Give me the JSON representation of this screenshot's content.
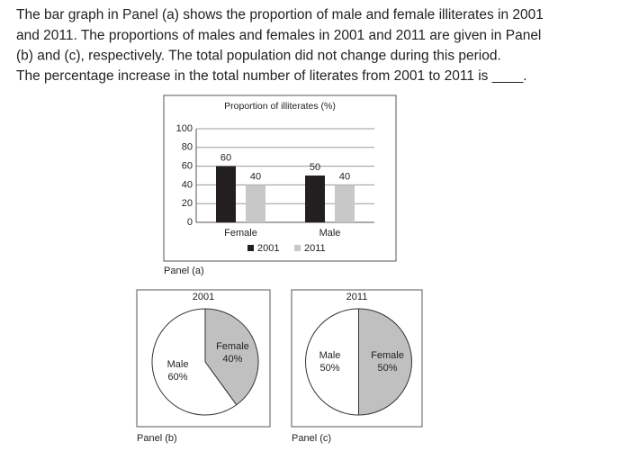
{
  "question": [
    "The bar graph in Panel (a) shows the proportion of male and female illiterates in 2001",
    "and 2011. The proportions of males and females in 2001 and 2011 are given in Panel",
    "(b) and (c), respectively. The total population did not change during this period.",
    "The percentage increase in the total number of literates from 2001 to 2011 is ____."
  ],
  "chart_data": [
    {
      "type": "bar",
      "title": "Proportion of illiterates (%)",
      "caption": "Panel (a)",
      "categories": [
        "Female",
        "Male"
      ],
      "series": [
        {
          "name": "2001",
          "color": "#231f20",
          "values": [
            60,
            50
          ]
        },
        {
          "name": "2011",
          "color": "#c8c8c8",
          "values": [
            40,
            40
          ]
        }
      ],
      "ylim": [
        0,
        100
      ],
      "yticks": [
        0,
        20,
        40,
        60,
        80,
        100
      ],
      "grid": true,
      "legend": "bottom"
    },
    {
      "type": "pie",
      "title": "2001",
      "caption": "Panel (b)",
      "categories": [
        "Female",
        "Male"
      ],
      "values": [
        40,
        60
      ],
      "value_labels": [
        "40%",
        "60%"
      ],
      "colors": [
        "#c0c0c0",
        "#ffffff"
      ]
    },
    {
      "type": "pie",
      "title": "2011",
      "caption": "Panel (c)",
      "categories": [
        "Female",
        "Male"
      ],
      "values": [
        50,
        50
      ],
      "value_labels": [
        "50%",
        "50%"
      ],
      "colors": [
        "#c0c0c0",
        "#ffffff"
      ]
    }
  ]
}
